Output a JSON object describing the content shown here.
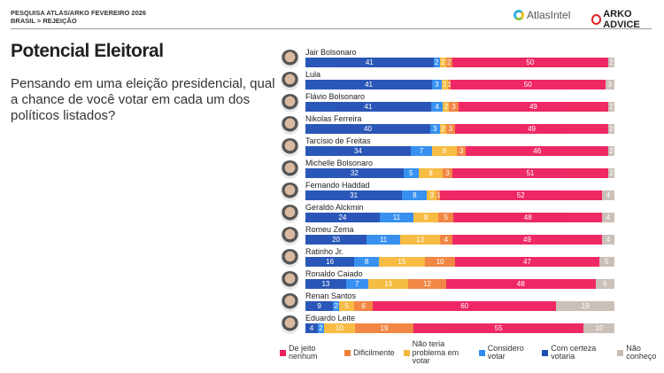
{
  "header": {
    "line1": "PESQUISA ATLAS/ARKO FEVEREIRO 2026",
    "line2": "BRASIL > REJEIÇÃO",
    "logo_atlas": "AtlasIntel",
    "logo_arko": "ARKO ADVICE"
  },
  "title": "Potencial Eleitoral",
  "question": "Pensando em uma eleição presidencial, qual a chance de você votar em cada um dos políticos listados?",
  "chart_data": {
    "type": "bar",
    "orientation": "horizontal-stacked-100",
    "categories": [
      "Jair Bolsonaro",
      "Lula",
      "Flávio Bolsonaro",
      "Nikolas Ferreira",
      "Tarcísio de Freitas",
      "Michelle Bolsonaro",
      "Fernando Haddad",
      "Geraldo Alckmin",
      "Romeu Zema",
      "Ratinho Jr.",
      "Ronaldo Caiado",
      "Renan Santos",
      "Eduardo Leite"
    ],
    "series": [
      {
        "name": "Com certeza votaria",
        "color": "#1f4fb4",
        "values": [
          41,
          41,
          41,
          40,
          34,
          32,
          31,
          24,
          20,
          16,
          13,
          9,
          4
        ]
      },
      {
        "name": "Considero votar",
        "color": "#2e8cf0",
        "values": [
          2,
          3,
          4,
          3,
          7,
          5,
          8,
          11,
          11,
          8,
          7,
          2,
          2
        ]
      },
      {
        "name": "Não teria problema em votar",
        "color": "#f6b93b",
        "values": [
          2,
          2,
          2,
          2,
          8,
          8,
          3,
          8,
          13,
          15,
          13,
          5,
          10
        ]
      },
      {
        "name": "Dificilmente",
        "color": "#f2803a",
        "values": [
          2,
          1,
          3,
          3,
          3,
          3,
          1,
          5,
          4,
          10,
          12,
          6,
          19
        ]
      },
      {
        "name": "De jeito nenhum",
        "color": "#ee1d5c",
        "values": [
          50,
          50,
          49,
          49,
          46,
          51,
          52,
          48,
          49,
          47,
          48,
          60,
          55
        ]
      },
      {
        "name": "Não conheço",
        "color": "#c9bdb5",
        "values": [
          2,
          3,
          2,
          2,
          2,
          2,
          4,
          4,
          4,
          5,
          6,
          19,
          10
        ]
      }
    ],
    "legend_order": [
      4,
      3,
      2,
      1,
      0,
      5
    ],
    "legend_placement": "bottom"
  }
}
